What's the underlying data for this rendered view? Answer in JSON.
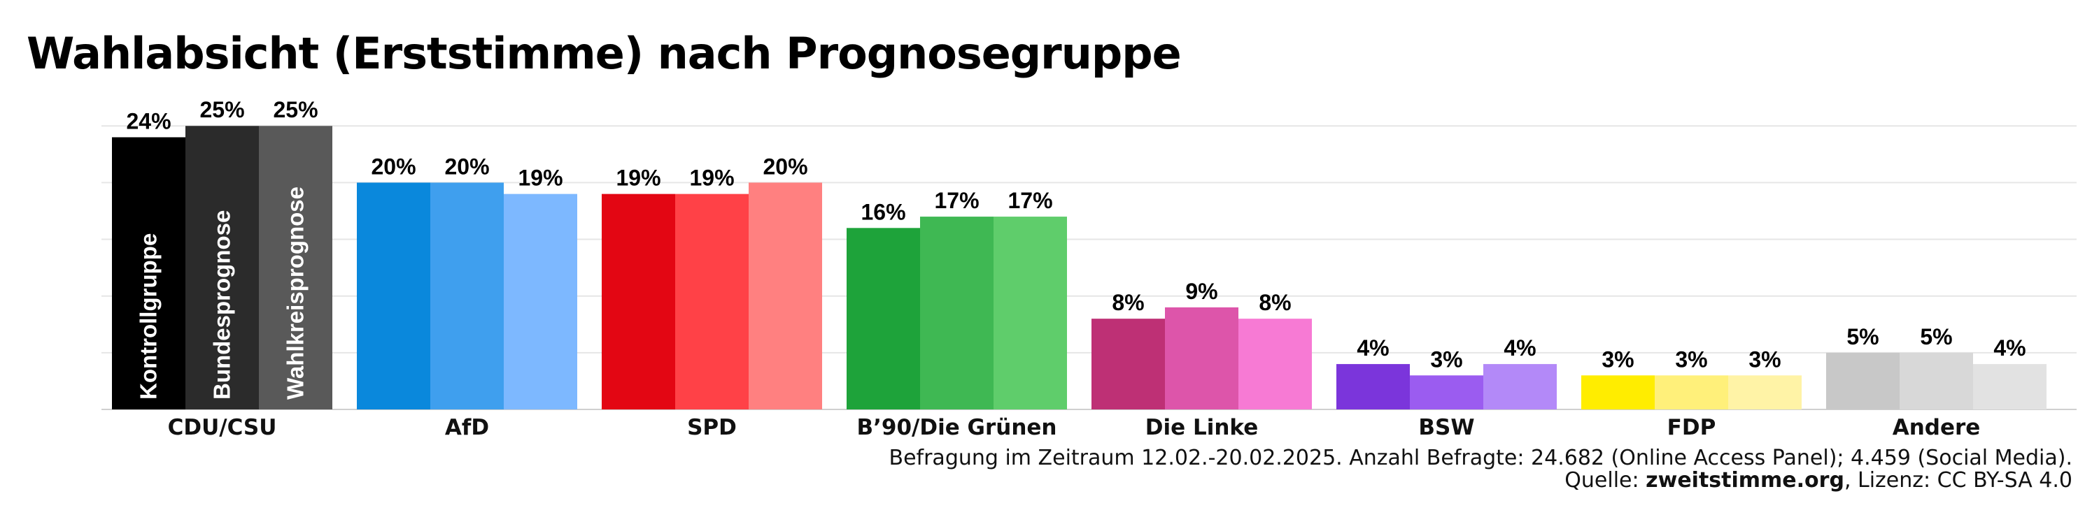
{
  "chart_data": {
    "type": "bar",
    "title": "Wahlabsicht (Erststimme) nach Prognosegruppe",
    "xlabel": "",
    "ylabel": "",
    "ylim": [
      0,
      26
    ],
    "grid": true,
    "categories": [
      "CDU/CSU",
      "AfD",
      "SPD",
      "B’90/Die Grünen",
      "Die Linke",
      "BSW",
      "FDP",
      "Andere"
    ],
    "series": [
      {
        "name": "Kontrollgruppe",
        "values": [
          24,
          20,
          19,
          16,
          8,
          4,
          3,
          5
        ],
        "labels": [
          "24%",
          "20%",
          "19%",
          "16%",
          "8%",
          "4%",
          "3%",
          "5%"
        ]
      },
      {
        "name": "Bundesprognose",
        "values": [
          25,
          20,
          19,
          17,
          9,
          3,
          3,
          5
        ],
        "labels": [
          "25%",
          "20%",
          "19%",
          "17%",
          "9%",
          "3%",
          "3%",
          "5%"
        ]
      },
      {
        "name": "Wahlkreisprognose",
        "values": [
          25,
          19,
          20,
          17,
          8,
          4,
          3,
          4
        ],
        "labels": [
          "25%",
          "19%",
          "20%",
          "17%",
          "8%",
          "4%",
          "3%",
          "4%"
        ]
      }
    ],
    "colors": [
      [
        "#000000",
        "#2b2b2b",
        "#595959"
      ],
      [
        "#0a88dc",
        "#3f9fee",
        "#7db8ff"
      ],
      [
        "#e30613",
        "#ff4147",
        "#ff8080"
      ],
      [
        "#1ea33a",
        "#3fb853",
        "#5fcd6b"
      ],
      [
        "#be3075",
        "#dd55aa",
        "#f77ad4"
      ],
      [
        "#7b35db",
        "#9b5cf0",
        "#b389f8"
      ],
      [
        "#ffed00",
        "#fff07a",
        "#fff3a6"
      ],
      [
        "#c8c8c8",
        "#d8d8d8",
        "#e2e2e2"
      ]
    ],
    "series_label_color": "#ffffff"
  },
  "footer": {
    "line1": "Befragung im Zeitraum 12.02.-20.02.2025. Anzahl Befragte: 24.682 (Online Access Panel); 4.459 (Social Media).",
    "source_prefix": "Quelle: ",
    "source_name": "zweitstimme.org",
    "license": ", Lizenz: CC BY-SA 4.0"
  }
}
